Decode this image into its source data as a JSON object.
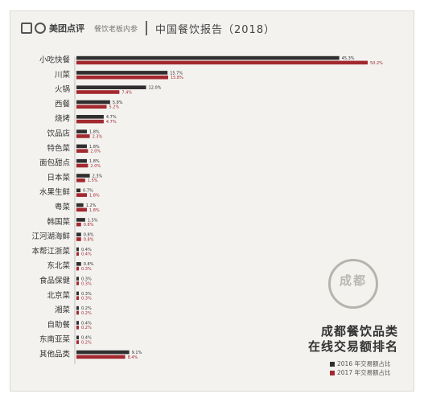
{
  "header": {
    "brand": "美团点评",
    "tag": "餐饮老板内参",
    "report_title": "中国餐饮报告（2018）"
  },
  "caption": {
    "line1": "成都餐饮品类",
    "line2": "在线交易额排名"
  },
  "seal_text": "成都",
  "legend": [
    {
      "label": "2016 年交易额占比",
      "color": "#2f2f2f"
    },
    {
      "label": "2017 年交易额占比",
      "color": "#a3292f"
    }
  ],
  "chart_data": {
    "type": "bar",
    "orientation": "horizontal",
    "title": "",
    "categories": [
      "小吃快餐",
      "川菜",
      "火锅",
      "西餐",
      "烧烤",
      "饮品店",
      "特色菜",
      "面包甜点",
      "日本菜",
      "水果生鲜",
      "粤菜",
      "韩国菜",
      "江河湖海鲜",
      "本帮江浙菜",
      "东北菜",
      "食品保健",
      "北京菜",
      "湘菜",
      "自助餐",
      "东南亚菜",
      "其他品类"
    ],
    "series": [
      {
        "name": "2016 年交易额占比",
        "color": "#2f2f2f",
        "values": [
          45.3,
          15.7,
          12.0,
          5.8,
          4.7,
          1.8,
          1.8,
          1.8,
          2.3,
          0.7,
          1.2,
          1.5,
          0.8,
          0.4,
          0.8,
          0.3,
          0.3,
          0.2,
          0.4,
          0.4,
          9.1
        ]
      },
      {
        "name": "2017 年交易额占比",
        "color": "#a3292f",
        "values": [
          50.2,
          15.8,
          7.4,
          5.2,
          4.7,
          2.3,
          2.0,
          2.0,
          1.5,
          1.8,
          1.8,
          0.8,
          0.8,
          0.4,
          0.3,
          0.3,
          0.3,
          0.2,
          0.2,
          0.2,
          8.4
        ]
      }
    ],
    "value_labels": [
      [
        "45.3%",
        "50.2%"
      ],
      [
        "15.7%",
        "15.8%"
      ],
      [
        "12.0%",
        "7.4%"
      ],
      [
        "5.8%",
        "5.2%"
      ],
      [
        "4.7%",
        "4.7%"
      ],
      [
        "1.8%",
        "2.3%"
      ],
      [
        "1.8%",
        "2.0%"
      ],
      [
        "1.8%",
        "2.0%"
      ],
      [
        "2.3%",
        "1.5%"
      ],
      [
        "0.7%",
        "1.8%"
      ],
      [
        "1.2%",
        "1.8%"
      ],
      [
        "1.5%",
        "0.8%"
      ],
      [
        "0.8%",
        "0.8%"
      ],
      [
        "0.4%",
        "0.4%"
      ],
      [
        "0.8%",
        "0.3%"
      ],
      [
        "0.3%",
        "0.3%"
      ],
      [
        "0.3%",
        "0.3%"
      ],
      [
        "0.2%",
        "0.2%"
      ],
      [
        "0.4%",
        "0.2%"
      ],
      [
        "0.4%",
        "0.2%"
      ],
      [
        "9.1%",
        "8.4%"
      ]
    ],
    "xlim": [
      0,
      52
    ],
    "grid": false
  }
}
